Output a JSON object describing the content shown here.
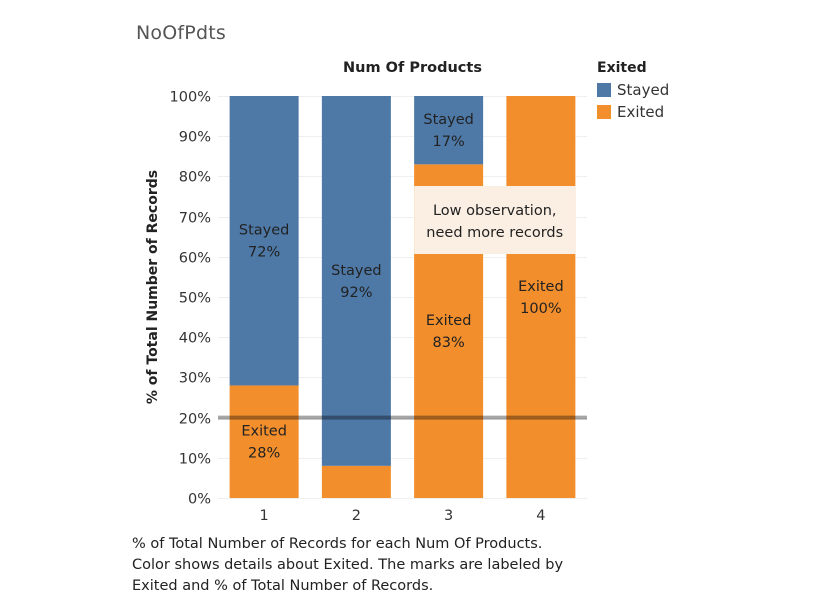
{
  "sheet_title": "NoOfPdts",
  "caption": "% of Total Number of Records for each Num Of Products.\nColor shows details about Exited.  The marks are labeled by\nExited and % of Total Number of Records.",
  "legend": {
    "title": "Exited",
    "items": [
      {
        "label": "Stayed",
        "color": "#4e79a7"
      },
      {
        "label": "Exited",
        "color": "#f28e2b"
      }
    ]
  },
  "annotation": {
    "line1": "Low observation,",
    "line2": "need more records"
  },
  "chart_data": {
    "type": "bar",
    "stacked": true,
    "title": "Num Of Products",
    "xlabel": "",
    "ylabel": "% of Total Number of Records",
    "categories": [
      "1",
      "2",
      "3",
      "4"
    ],
    "ylim": [
      0,
      100
    ],
    "y_ticks": [
      "0%",
      "10%",
      "20%",
      "30%",
      "40%",
      "50%",
      "60%",
      "70%",
      "80%",
      "90%",
      "100%"
    ],
    "reference_line": 20,
    "series": [
      {
        "name": "Exited",
        "color": "#f28e2b",
        "values": [
          28,
          8,
          83,
          100
        ],
        "labels": [
          "Exited\n28%",
          "",
          "Exited\n83%",
          "Exited\n100%"
        ]
      },
      {
        "name": "Stayed",
        "color": "#4e79a7",
        "values": [
          72,
          92,
          17,
          0
        ],
        "labels": [
          "Stayed\n72%",
          "Stayed\n92%",
          "Stayed\n17%",
          ""
        ]
      }
    ]
  }
}
